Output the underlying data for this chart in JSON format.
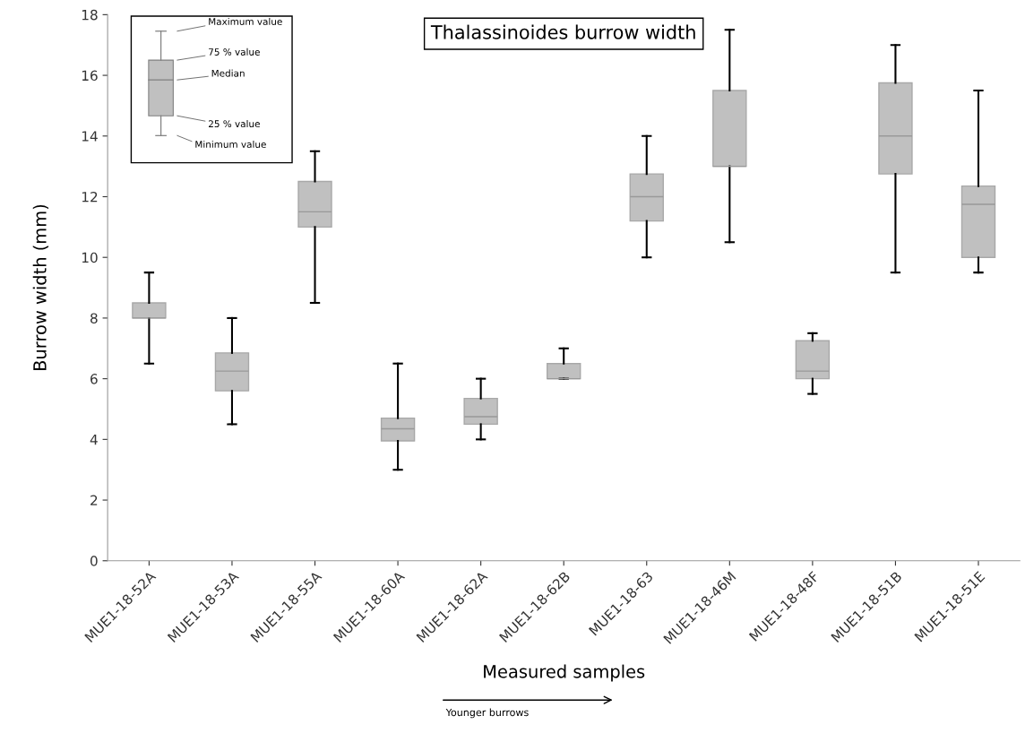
{
  "chart_data": {
    "type": "box",
    "title": "Thalassinoides burrow width",
    "xlabel": "Measured samples",
    "ylabel": "Burrow width (mm)",
    "categories": [
      "MUE1-18-52A",
      "MUE1-18-53A",
      "MUE1-18-55A",
      "MUE1-18-60A",
      "MUE1-18-62A",
      "MUE1-18-62B",
      "MUE1-18-63",
      "MUE1-18-46M",
      "MUE1-18-48F",
      "MUE1-18-51B",
      "MUE1-18-51E"
    ],
    "boxes": [
      {
        "low": 6.5,
        "q1": 8.0,
        "median": 8.0,
        "q3": 8.5,
        "high": 9.5
      },
      {
        "low": 4.5,
        "q1": 5.6,
        "median": 6.25,
        "q3": 6.85,
        "high": 8.0
      },
      {
        "low": 8.5,
        "q1": 11.0,
        "median": 11.5,
        "q3": 12.5,
        "high": 13.5
      },
      {
        "low": 3.0,
        "q1": 3.95,
        "median": 4.35,
        "q3": 4.7,
        "high": 6.5
      },
      {
        "low": 4.0,
        "q1": 4.5,
        "median": 4.75,
        "q3": 5.35,
        "high": 6.0
      },
      {
        "low": 6.0,
        "q1": 6.0,
        "median": 6.0,
        "q3": 6.5,
        "high": 7.0
      },
      {
        "low": 10.0,
        "q1": 11.2,
        "median": 12.0,
        "q3": 12.75,
        "high": 14.0
      },
      {
        "low": 10.5,
        "q1": 13.0,
        "median": 13.0,
        "q3": 15.5,
        "high": 17.5
      },
      {
        "low": 5.5,
        "q1": 6.0,
        "median": 6.25,
        "q3": 7.25,
        "high": 7.5
      },
      {
        "low": 9.5,
        "q1": 12.75,
        "median": 14.0,
        "q3": 15.75,
        "high": 17.0
      },
      {
        "low": 9.5,
        "q1": 10.0,
        "median": 11.75,
        "q3": 12.35,
        "high": 15.5
      }
    ],
    "color": "#c0c0c0",
    "ylim": [
      0,
      18
    ],
    "yticks": [
      0,
      2,
      4,
      6,
      8,
      10,
      12,
      14,
      16,
      18
    ],
    "grid": false,
    "annotations": [
      "Maximum value",
      "75 % value",
      "Median",
      "25 % value",
      "Minimum value",
      "Younger burrows"
    ]
  }
}
